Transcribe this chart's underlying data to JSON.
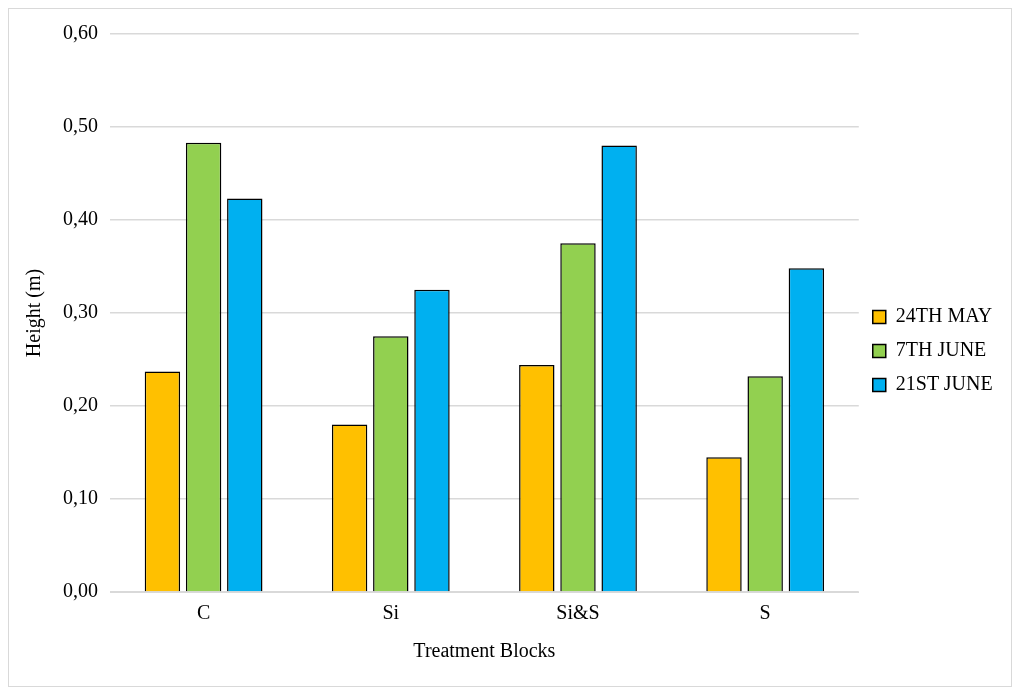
{
  "chart_data": {
    "type": "bar",
    "xlabel": "Treatment Blocks",
    "ylabel": "Height (m)",
    "categories": [
      "C",
      "Si",
      "Si&S",
      "S"
    ],
    "series": [
      {
        "name": "24TH MAY",
        "color": "#ffc000",
        "values": [
          0.237,
          0.18,
          0.244,
          0.145
        ]
      },
      {
        "name": "7TH JUNE",
        "color": "#92d050",
        "values": [
          0.483,
          0.275,
          0.375,
          0.232
        ]
      },
      {
        "name": "21ST JUNE",
        "color": "#00b0f0",
        "values": [
          0.423,
          0.325,
          0.48,
          0.348
        ]
      }
    ],
    "ylim": [
      0,
      0.6
    ],
    "yticks": [
      {
        "value": 0,
        "label": "0,00"
      },
      {
        "value": 0.1,
        "label": "0,10"
      },
      {
        "value": 0.2,
        "label": "0,20"
      },
      {
        "value": 0.3,
        "label": "0,30"
      },
      {
        "value": 0.4,
        "label": "0,40"
      },
      {
        "value": 0.5,
        "label": "0,50"
      },
      {
        "value": 0.6,
        "label": "0,60"
      }
    ],
    "grid": "y",
    "legend": "right"
  }
}
